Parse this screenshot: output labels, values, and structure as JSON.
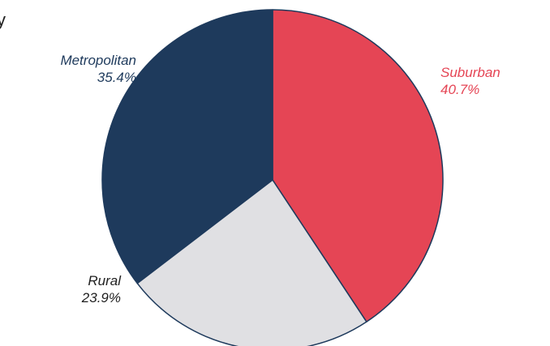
{
  "page": {
    "title_fragment": "y"
  },
  "chart_data": {
    "type": "pie",
    "title": "",
    "slices": [
      {
        "label": "Suburban",
        "value_label": "40.7%",
        "value": 40.7,
        "color": "#e54555",
        "label_color": "#e54555"
      },
      {
        "label": "Rural",
        "value_label": "23.9%",
        "value": 23.9,
        "color": "#e0e0e3",
        "label_color": "#1f1f1f"
      },
      {
        "label": "Metropolitan",
        "value_label": "35.4%",
        "value": 35.4,
        "color": "#1e3a5c",
        "label_color": "#1e3a5c"
      }
    ],
    "start_angle_deg": 0,
    "direction": "clockwise",
    "edge_color": "#1e3a5c"
  }
}
